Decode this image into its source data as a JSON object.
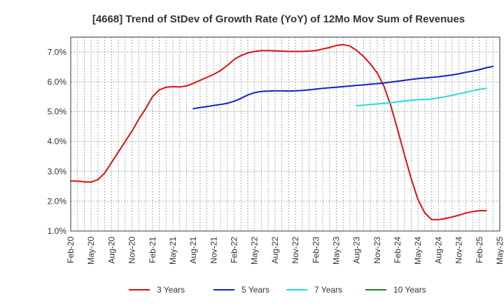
{
  "chart_data": {
    "type": "line",
    "title": "[4668]  Trend of StDev of Growth Rate (YoY) of 12Mo Mov Sum of Revenues",
    "xlabel": "",
    "ylabel": "",
    "ylim": [
      1.0,
      7.5
    ],
    "y_ticks": [
      "1.0%",
      "2.0%",
      "3.0%",
      "4.0%",
      "5.0%",
      "6.0%",
      "7.0%"
    ],
    "x_ticks": [
      "Feb-20",
      "May-20",
      "Aug-20",
      "Nov-20",
      "Feb-21",
      "May-21",
      "Aug-21",
      "Nov-21",
      "Feb-22",
      "May-22",
      "Aug-22",
      "Nov-22",
      "Feb-23",
      "May-23",
      "Aug-23",
      "Nov-23",
      "Feb-24",
      "May-24",
      "Aug-24",
      "Nov-24",
      "Feb-25",
      "May-25"
    ],
    "grid": true,
    "legend_position": "bottom",
    "series": [
      {
        "name": "3 Years",
        "color": "#dd1111",
        "start_index": 0,
        "values": [
          2.68,
          2.67,
          2.65,
          2.64,
          2.72,
          2.95,
          3.3,
          3.65,
          4.0,
          4.35,
          4.75,
          5.1,
          5.5,
          5.73,
          5.82,
          5.84,
          5.83,
          5.86,
          5.95,
          6.05,
          6.15,
          6.25,
          6.38,
          6.55,
          6.75,
          6.88,
          6.97,
          7.02,
          7.05,
          7.05,
          7.04,
          7.03,
          7.02,
          7.02,
          7.02,
          7.03,
          7.05,
          7.1,
          7.15,
          7.22,
          7.25,
          7.2,
          7.05,
          6.85,
          6.6,
          6.3,
          5.85,
          5.2,
          4.4,
          3.55,
          2.75,
          2.05,
          1.6,
          1.38,
          1.38,
          1.42,
          1.47,
          1.53,
          1.6,
          1.65,
          1.68,
          1.68
        ]
      },
      {
        "name": "5 Years",
        "color": "#1122cc",
        "start_index": 18,
        "values": [
          5.1,
          5.14,
          5.17,
          5.21,
          5.24,
          5.28,
          5.35,
          5.45,
          5.56,
          5.64,
          5.68,
          5.69,
          5.7,
          5.7,
          5.69,
          5.7,
          5.71,
          5.73,
          5.76,
          5.78,
          5.8,
          5.82,
          5.84,
          5.86,
          5.88,
          5.9,
          5.92,
          5.94,
          5.96,
          5.99,
          6.02,
          6.05,
          6.08,
          6.11,
          6.13,
          6.15,
          6.17,
          6.2,
          6.23,
          6.27,
          6.32,
          6.36,
          6.41,
          6.47,
          6.52
        ]
      },
      {
        "name": "7 Years",
        "color": "#22dddd",
        "start_index": 42,
        "values": [
          5.2,
          5.22,
          5.24,
          5.26,
          5.28,
          5.3,
          5.33,
          5.36,
          5.38,
          5.4,
          5.41,
          5.43,
          5.46,
          5.5,
          5.55,
          5.6,
          5.65,
          5.7,
          5.75,
          5.78
        ]
      },
      {
        "name": "10 Years",
        "color": "#228822",
        "start_index": 0,
        "values": []
      }
    ]
  }
}
